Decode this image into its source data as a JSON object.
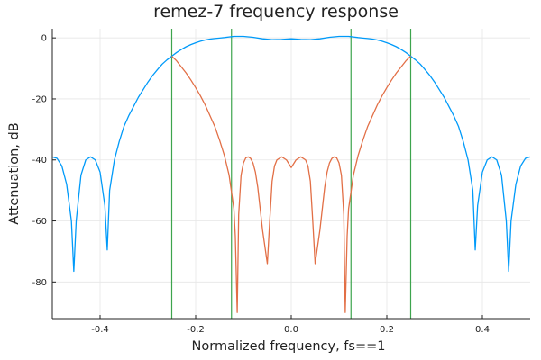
{
  "chart_data": {
    "type": "line",
    "title": "remez-7 frequency response",
    "xlabel": "Normalized frequency, fs==1",
    "ylabel": "Attenuation, dB",
    "xlim": [
      -0.5,
      0.5
    ],
    "ylim": [
      -92,
      3
    ],
    "x_ticks": [
      -0.4,
      -0.2,
      0.0,
      0.2,
      0.4
    ],
    "x_tick_labels": [
      "-0.4",
      "-0.2",
      "0.0",
      "0.2",
      "0.4"
    ],
    "y_ticks": [
      0,
      -20,
      -40,
      -60,
      -80
    ],
    "y_tick_labels": [
      "0",
      "-20",
      "-40",
      "-60",
      "-80"
    ],
    "grid": true,
    "legend": "none",
    "colors": {
      "response": "#009af9",
      "stopband_lobes": "#e26f46",
      "band_edges": "#3da44d",
      "axes": "#222222",
      "grid": "#e6e6e6"
    },
    "series": [
      {
        "x": [
          -0.5,
          -0.49,
          -0.48,
          -0.47,
          -0.46,
          -0.455,
          -0.45,
          -0.44,
          -0.43,
          -0.42,
          -0.41,
          -0.4,
          -0.39,
          -0.385,
          -0.38,
          -0.37,
          -0.36,
          -0.35,
          -0.34,
          -0.33,
          -0.32,
          -0.31,
          -0.3,
          -0.29,
          -0.28,
          -0.27,
          -0.26,
          -0.25,
          -0.24,
          -0.23,
          -0.22,
          -0.21,
          -0.2,
          -0.19,
          -0.18,
          -0.17,
          -0.16,
          -0.15,
          -0.14,
          -0.13,
          -0.125,
          -0.12,
          -0.1,
          -0.08,
          -0.06,
          -0.04,
          -0.02,
          0.0,
          0.02,
          0.04,
          0.06,
          0.08,
          0.1,
          0.12,
          0.125,
          0.13,
          0.14,
          0.15,
          0.16,
          0.17,
          0.18,
          0.19,
          0.2,
          0.21,
          0.22,
          0.23,
          0.24,
          0.25,
          0.26,
          0.27,
          0.28,
          0.29,
          0.3,
          0.31,
          0.32,
          0.33,
          0.34,
          0.35,
          0.36,
          0.37,
          0.38,
          0.385,
          0.39,
          0.4,
          0.41,
          0.42,
          0.43,
          0.44,
          0.45,
          0.455,
          0.46,
          0.47,
          0.48,
          0.49,
          0.5
        ],
        "y": [
          -39,
          -39.5,
          -42,
          -48,
          -60,
          -76.5,
          -60,
          -45,
          -40,
          -39,
          -40,
          -44,
          -55,
          -69.5,
          -50,
          -40,
          -34,
          -29,
          -25.5,
          -22.5,
          -19.5,
          -17,
          -14.5,
          -12.3,
          -10.4,
          -8.6,
          -7.2,
          -6,
          -4.8,
          -3.8,
          -2.9,
          -2.2,
          -1.6,
          -1.1,
          -0.7,
          -0.4,
          -0.2,
          -0.05,
          0.1,
          0.3,
          0.4,
          0.5,
          0.5,
          0.2,
          -0.3,
          -0.6,
          -0.5,
          -0.3,
          -0.5,
          -0.6,
          -0.3,
          0.2,
          0.5,
          0.5,
          0.4,
          0.3,
          0.1,
          -0.05,
          -0.2,
          -0.4,
          -0.7,
          -1.1,
          -1.6,
          -2.2,
          -2.9,
          -3.8,
          -4.8,
          -6,
          -7.2,
          -8.6,
          -10.4,
          -12.3,
          -14.5,
          -17,
          -19.5,
          -22.5,
          -25.5,
          -29,
          -34,
          -40,
          -50,
          -69.5,
          -55,
          -44,
          -40,
          -39,
          -40,
          -45,
          -60,
          -76.5,
          -60,
          -48,
          -42,
          -39.5,
          -39
        ]
      },
      {
        "x": [
          -0.25,
          -0.24,
          -0.23,
          -0.22,
          -0.21,
          -0.2,
          -0.19,
          -0.18,
          -0.17,
          -0.16,
          -0.15,
          -0.14,
          -0.13,
          -0.12,
          -0.117,
          -0.113,
          -0.11,
          -0.105,
          -0.1,
          -0.095,
          -0.09,
          -0.085,
          -0.08,
          -0.075,
          -0.07,
          -0.06,
          -0.05,
          -0.045,
          -0.04,
          -0.035,
          -0.03,
          -0.02,
          -0.01,
          0.0,
          0.01,
          0.02,
          0.03,
          0.035,
          0.04,
          0.045,
          0.05,
          0.06,
          0.07,
          0.075,
          0.08,
          0.085,
          0.09,
          0.095,
          0.1,
          0.105,
          0.11,
          0.113,
          0.117,
          0.12,
          0.13,
          0.14,
          0.15,
          0.16,
          0.17,
          0.18,
          0.19,
          0.2,
          0.21,
          0.22,
          0.23,
          0.24,
          0.25
        ],
        "y": [
          -6,
          -7.5,
          -9.5,
          -11.5,
          -13.8,
          -16.3,
          -19,
          -22,
          -25.5,
          -29,
          -33.5,
          -38.5,
          -45,
          -56,
          -65,
          -90,
          -58,
          -45,
          -41,
          -39.3,
          -39,
          -39.5,
          -41,
          -44,
          -49,
          -63,
          -74,
          -60,
          -47,
          -42,
          -40,
          -39,
          -40,
          -42.5,
          -40,
          -39,
          -40,
          -42,
          -47,
          -60,
          -74,
          -63,
          -49,
          -44,
          -41,
          -39.5,
          -39,
          -39.3,
          -41,
          -45,
          -58,
          -90,
          -65,
          -56,
          -45,
          -38.5,
          -33.5,
          -29,
          -25.5,
          -22,
          -19,
          -16.3,
          -13.8,
          -11.5,
          -9.5,
          -7.5,
          -6
        ]
      }
    ],
    "vlines": [
      -0.25,
      -0.125,
      0.125,
      0.25
    ]
  }
}
